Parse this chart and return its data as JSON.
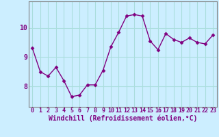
{
  "x": [
    0,
    1,
    2,
    3,
    4,
    5,
    6,
    7,
    8,
    9,
    10,
    11,
    12,
    13,
    14,
    15,
    16,
    17,
    18,
    19,
    20,
    21,
    22,
    23
  ],
  "y": [
    9.3,
    8.5,
    8.35,
    8.65,
    8.2,
    7.65,
    7.7,
    8.05,
    8.05,
    8.55,
    9.35,
    9.85,
    10.4,
    10.45,
    10.4,
    9.55,
    9.25,
    9.8,
    9.6,
    9.5,
    9.65,
    9.5,
    9.45,
    9.75
  ],
  "line_color": "#800080",
  "marker": "D",
  "marker_size": 2.5,
  "line_width": 1.0,
  "bg_color": "#cceeff",
  "grid_color": "#aadddd",
  "xlabel": "Windchill (Refroidissement éolien,°C)",
  "xlabel_color": "#800080",
  "xlabel_fontsize": 7,
  "tick_color": "#800080",
  "tick_fontsize": 6,
  "ytick_fontsize": 7,
  "yticks": [
    8,
    9,
    10
  ],
  "ylim": [
    7.3,
    10.9
  ],
  "xlim": [
    -0.5,
    23.5
  ],
  "xticks": [
    0,
    1,
    2,
    3,
    4,
    5,
    6,
    7,
    8,
    9,
    10,
    11,
    12,
    13,
    14,
    15,
    16,
    17,
    18,
    19,
    20,
    21,
    22,
    23
  ],
  "spine_color": "#808080"
}
